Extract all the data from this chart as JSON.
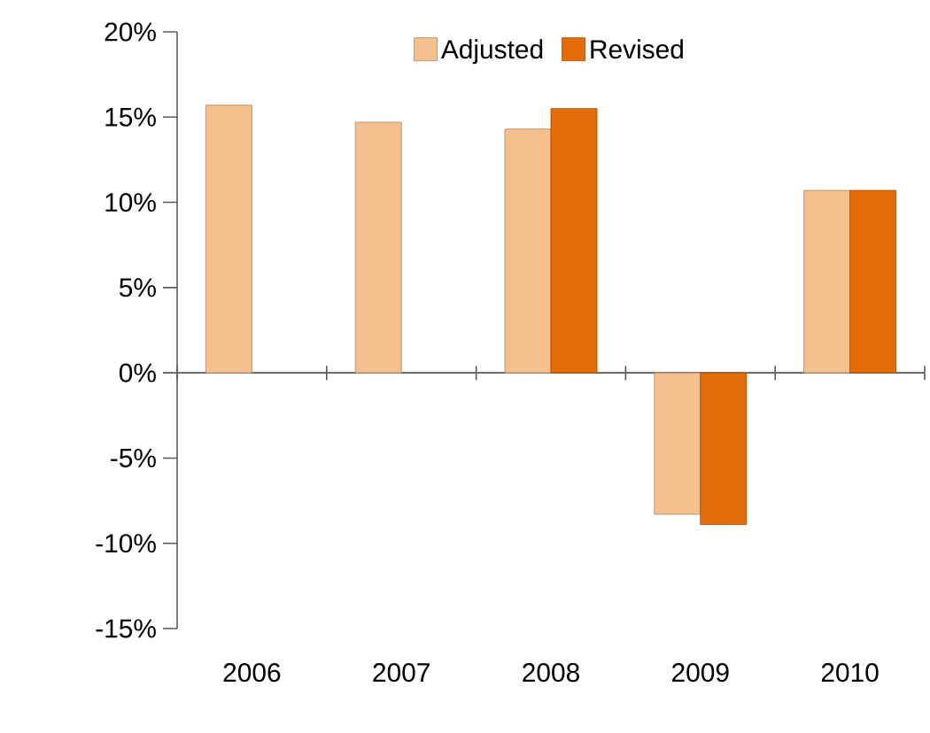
{
  "chart_data": {
    "type": "bar",
    "categories": [
      "2006",
      "2007",
      "2008",
      "2009",
      "2010"
    ],
    "series": [
      {
        "name": "Adjusted",
        "color": "#f5c08e",
        "values": [
          15.7,
          14.7,
          14.3,
          -8.3,
          10.7
        ]
      },
      {
        "name": "Revised",
        "color": "#e36c0a",
        "values": [
          null,
          null,
          15.5,
          -8.9,
          10.7
        ]
      }
    ],
    "ylim": [
      -15,
      20
    ],
    "yticks": [
      {
        "value": -15,
        "label": "-15%"
      },
      {
        "value": -10,
        "label": "-10%"
      },
      {
        "value": -5,
        "label": "-5%"
      },
      {
        "value": 0,
        "label": "0%"
      },
      {
        "value": 5,
        "label": "5%"
      },
      {
        "value": 10,
        "label": "10%"
      },
      {
        "value": 15,
        "label": "15%"
      },
      {
        "value": 20,
        "label": "20%"
      }
    ],
    "legend": "top"
  }
}
